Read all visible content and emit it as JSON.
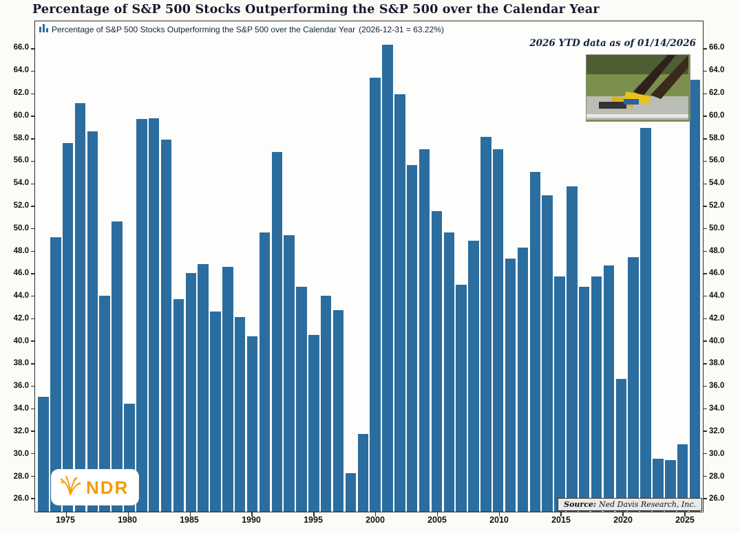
{
  "title": "Percentage of S&P 500 Stocks Outperforming the S&P 500 over the Calendar Year",
  "legend": {
    "label": "Percentage of S&P 500 Stocks Outperforming the S&P 500 over the Calendar Year",
    "value": "(2026-12-31 = 63.22%)"
  },
  "annotation": "2026 YTD data as of 01/14/2026",
  "source": {
    "prefix": "Source:",
    "text": "Ned Davis Research, Inc."
  },
  "logo": {
    "text": "NDR"
  },
  "colors": {
    "bar": "#2b6d9e",
    "logo_orange": "#f59b00",
    "title_text": "#15192b"
  },
  "chart_data": {
    "type": "bar",
    "title": "Percentage of S&P 500 Stocks Outperforming the S&P 500 over the Calendar Year",
    "xlabel": "",
    "ylabel": "",
    "grid": false,
    "legend_position": "top-left",
    "ylim": [
      24.8,
      68.4
    ],
    "yticks": [
      66.0,
      64.0,
      62.0,
      60.0,
      58.0,
      56.0,
      54.0,
      52.0,
      50.0,
      48.0,
      46.0,
      44.0,
      42.0,
      40.0,
      38.0,
      36.0,
      34.0,
      32.0,
      30.0,
      28.0,
      26.0
    ],
    "xticks": [
      1975,
      1980,
      1985,
      1990,
      1995,
      2000,
      2005,
      2010,
      2015,
      2020,
      2025
    ],
    "x": [
      1973,
      1974,
      1975,
      1976,
      1977,
      1978,
      1979,
      1980,
      1981,
      1982,
      1983,
      1984,
      1985,
      1986,
      1987,
      1988,
      1989,
      1990,
      1991,
      1992,
      1993,
      1994,
      1995,
      1996,
      1997,
      1998,
      1999,
      2000,
      2001,
      2002,
      2003,
      2004,
      2005,
      2006,
      2007,
      2008,
      2009,
      2010,
      2011,
      2012,
      2013,
      2014,
      2015,
      2016,
      2017,
      2018,
      2019,
      2020,
      2021,
      2022,
      2023,
      2024,
      2025,
      2026
    ],
    "values": [
      35.0,
      49.2,
      57.6,
      61.1,
      58.6,
      44.0,
      50.6,
      34.4,
      59.7,
      59.8,
      57.9,
      43.7,
      46.0,
      46.8,
      42.6,
      46.6,
      42.1,
      40.4,
      49.6,
      56.8,
      49.4,
      44.8,
      40.5,
      44.0,
      42.7,
      28.2,
      31.7,
      63.4,
      66.3,
      61.9,
      55.6,
      57.0,
      51.5,
      49.6,
      45.0,
      48.9,
      58.1,
      57.0,
      47.3,
      48.3,
      55.0,
      52.9,
      45.7,
      53.7,
      44.8,
      45.7,
      46.7,
      36.6,
      47.4,
      58.9,
      29.5,
      29.4,
      30.8,
      63.22
    ]
  }
}
